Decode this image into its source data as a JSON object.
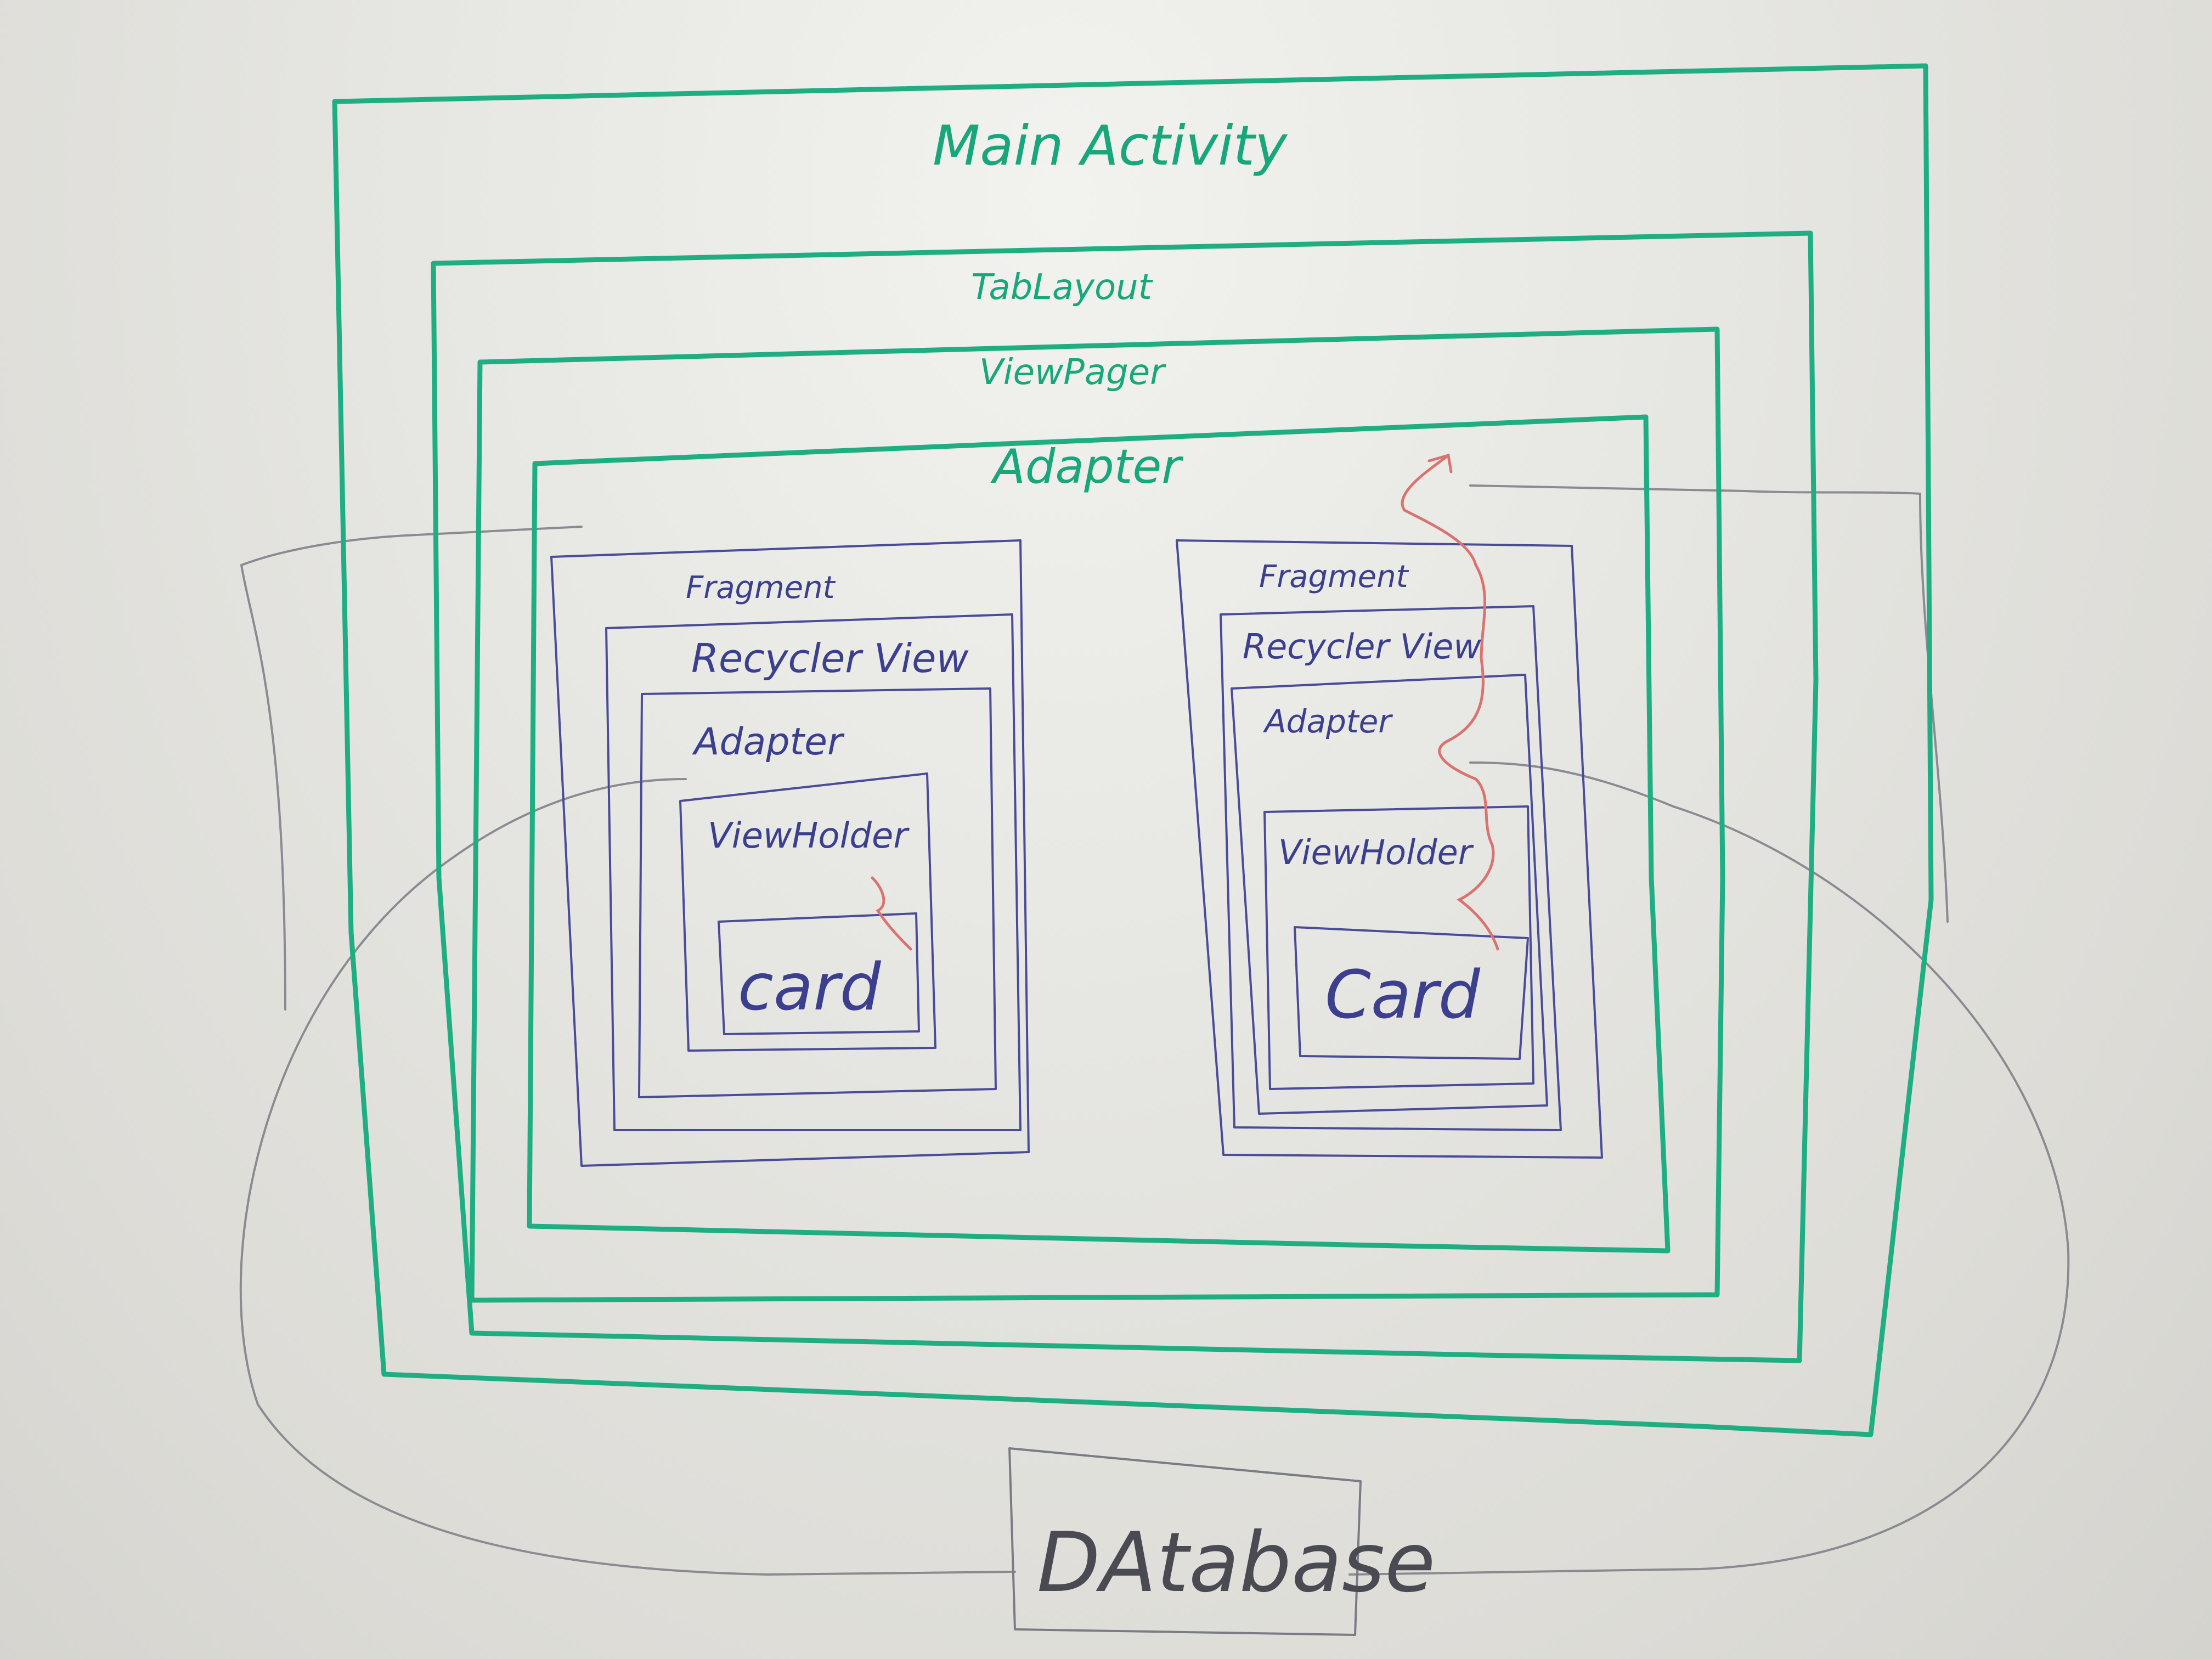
{
  "diagram": {
    "main_activity": "Main Activity",
    "tab_layout": "TabLayout",
    "view_pager": "ViewPager",
    "adapter": "Adapter",
    "fragments": [
      {
        "fragment": "Fragment",
        "recycler_view": "Recycler View",
        "adapter": "Adapter",
        "view_holder": "ViewHolder",
        "card": "card"
      },
      {
        "fragment": "Fragment",
        "recycler_view": "Recycler View",
        "adapter": "Adapter",
        "view_holder": "ViewHolder",
        "card": "Card"
      }
    ],
    "database": "DAtabase"
  },
  "colors": {
    "board": "#e4e4e0",
    "green_marker": "#1fae82",
    "blue_marker": "#4a4c9a",
    "gray_marker": "#7b7b85",
    "red_marker": "#d9736f"
  }
}
